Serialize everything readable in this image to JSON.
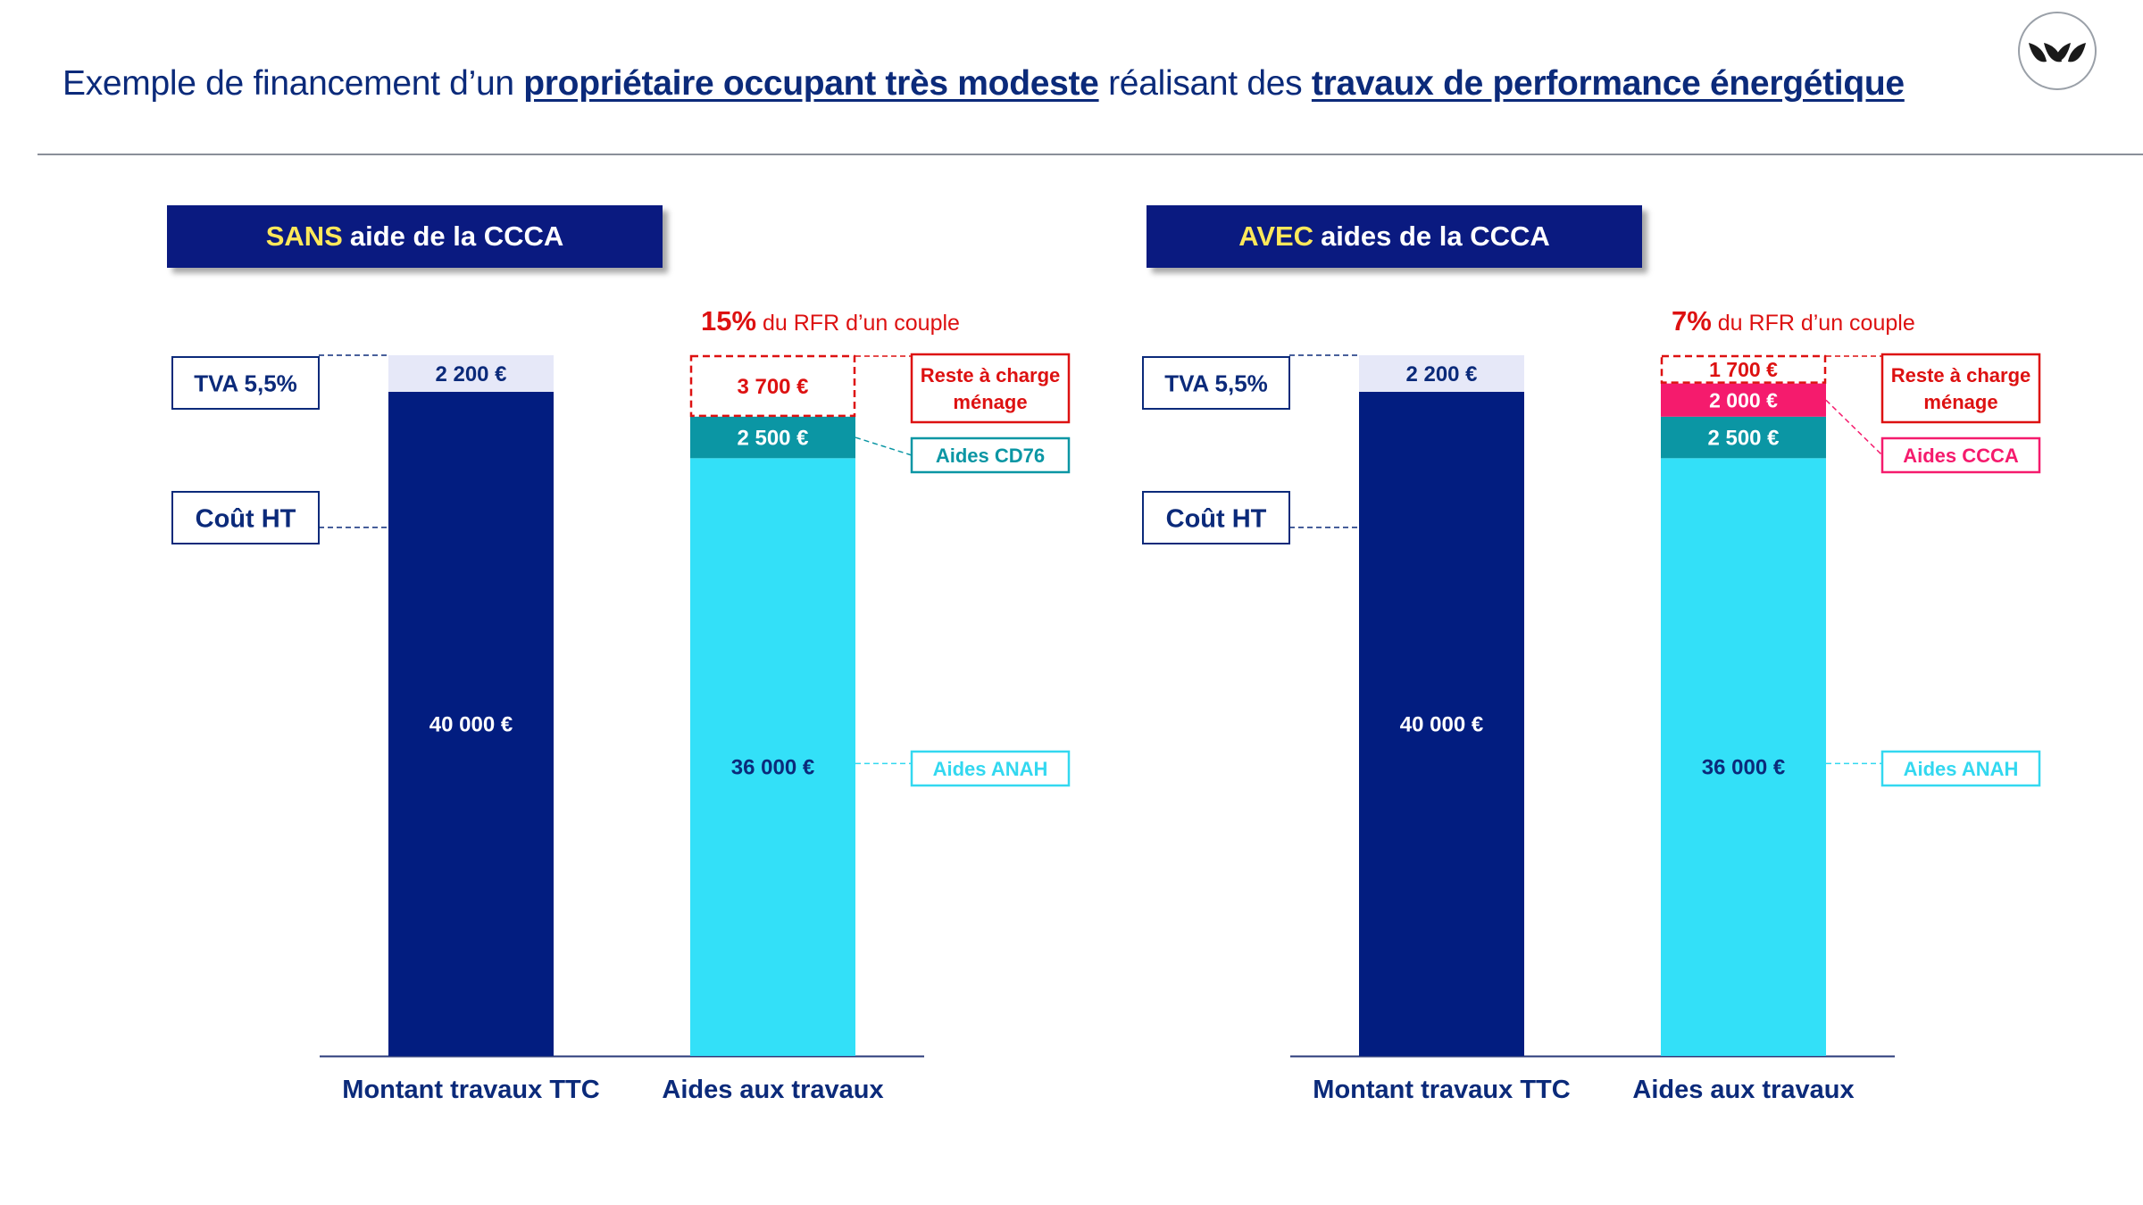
{
  "header": {
    "title_prefix": "Exemple de financement d’un",
    "title_hl1": "propriétaire occupant très modeste",
    "title_mid": "réalisant des",
    "title_hl2": "travaux de performance énergétique"
  },
  "logo": {
    "icon": "leaves-logo-icon"
  },
  "colors": {
    "navy": "#021d80",
    "cyan": "#33e0f8",
    "teal": "#0b96a4",
    "pink": "#f51b6d",
    "red": "#dd1111",
    "lavender": "#e6e8f8"
  },
  "chart_data": [
    {
      "type": "bar",
      "stacked": true,
      "banner_keyword": "SANS",
      "banner_rest": "aide de la CCCA",
      "annotation_pct": "15%",
      "annotation_text": "du RFR d’un couple",
      "categories": [
        "Montant travaux TTC",
        "Aides aux travaux"
      ],
      "bars": [
        {
          "category": "Montant travaux TTC",
          "segments": [
            {
              "value": 40000,
              "label": "40 000 €",
              "color": "navy",
              "text_color": "#ffffff"
            },
            {
              "value": 2200,
              "label": "2 200 €",
              "color": "lavender",
              "text_color": "#0b2a7a"
            }
          ]
        },
        {
          "category": "Aides aux travaux",
          "segments": [
            {
              "value": 36000,
              "label": "36 000 €",
              "color": "cyan",
              "text_color": "#0b2a7a",
              "tag": "Aides ANAH"
            },
            {
              "value": 2500,
              "label": "2 500 €",
              "color": "teal",
              "text_color": "#ffffff",
              "tag": "Aides CD76"
            },
            {
              "value": 3700,
              "label": "3 700 €",
              "color": "none",
              "dashed": true,
              "text_color": "#dd1111",
              "tag": "Reste à charge ménage"
            }
          ]
        }
      ],
      "left_labels": [
        "TVA 5,5%",
        "Coût HT"
      ]
    },
    {
      "type": "bar",
      "stacked": true,
      "banner_keyword": "AVEC",
      "banner_rest": "aides de la CCCA",
      "annotation_pct": "7%",
      "annotation_text": "du RFR d’un couple",
      "categories": [
        "Montant travaux TTC",
        "Aides aux travaux"
      ],
      "bars": [
        {
          "category": "Montant travaux TTC",
          "segments": [
            {
              "value": 40000,
              "label": "40 000 €",
              "color": "navy",
              "text_color": "#ffffff"
            },
            {
              "value": 2200,
              "label": "2 200 €",
              "color": "lavender",
              "text_color": "#0b2a7a"
            }
          ]
        },
        {
          "category": "Aides aux travaux",
          "segments": [
            {
              "value": 36000,
              "label": "36 000 €",
              "color": "cyan",
              "text_color": "#0b2a7a",
              "tag": "Aides ANAH"
            },
            {
              "value": 2500,
              "label": "2 500 €",
              "color": "teal",
              "text_color": "#ffffff"
            },
            {
              "value": 2000,
              "label": "2 000 €",
              "color": "pink",
              "text_color": "#ffffff",
              "tag": "Aides CCCA"
            },
            {
              "value": 1700,
              "label": "1 700 €",
              "color": "none",
              "dashed": true,
              "text_color": "#dd1111",
              "tag": "Reste à charge ménage"
            }
          ]
        }
      ],
      "left_labels": [
        "TVA 5,5%",
        "Coût HT"
      ]
    }
  ]
}
